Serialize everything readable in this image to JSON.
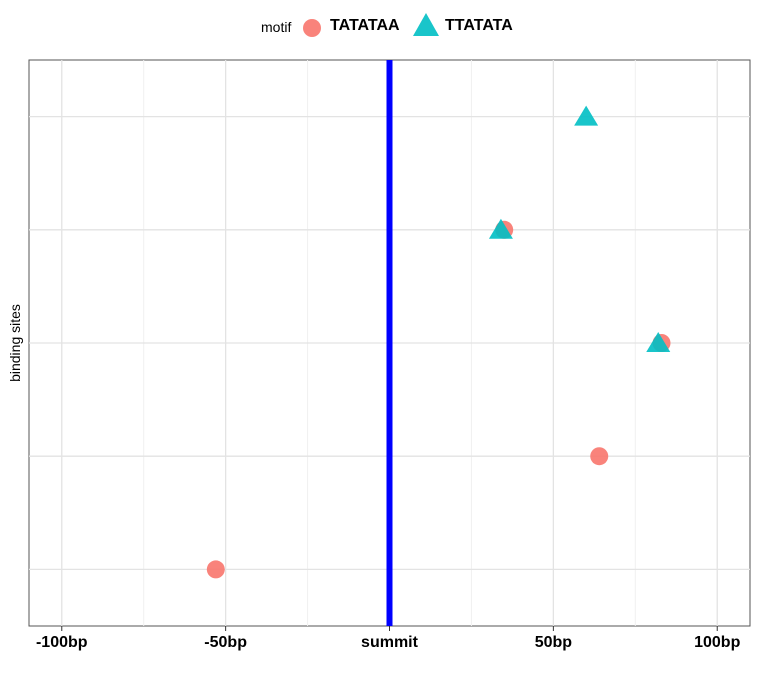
{
  "legend": {
    "title": "motif",
    "entries": [
      {
        "name": "TATATAA",
        "shape": "circle",
        "color": "#F8766D"
      },
      {
        "name": "TTATATA",
        "shape": "triangle",
        "color": "#00BFC4"
      }
    ]
  },
  "chart_data": {
    "type": "scatter",
    "ylabel": "binding sites",
    "xlabel": "",
    "xlim": [
      -110,
      110
    ],
    "ylim": [
      0.5,
      5.5
    ],
    "x_ticks": [
      {
        "value": -100,
        "label": "-100bp"
      },
      {
        "value": -50,
        "label": "-50bp"
      },
      {
        "value": 0,
        "label": "summit"
      },
      {
        "value": 50,
        "label": "50bp"
      },
      {
        "value": 100,
        "label": "100bp"
      }
    ],
    "reference_line": {
      "x": 0,
      "color": "#0000FF"
    },
    "grid": true,
    "legend_position": "top",
    "series": [
      {
        "name": "TATATAA",
        "shape": "circle",
        "color": "#F8766D",
        "points": [
          {
            "x": -53,
            "y": 1
          },
          {
            "x": 64,
            "y": 2
          },
          {
            "x": 83,
            "y": 3
          },
          {
            "x": 35,
            "y": 4
          }
        ]
      },
      {
        "name": "TTATATA",
        "shape": "triangle",
        "color": "#00BFC4",
        "points": [
          {
            "x": 82,
            "y": 3
          },
          {
            "x": 34,
            "y": 4
          },
          {
            "x": 60,
            "y": 5
          }
        ]
      }
    ]
  }
}
